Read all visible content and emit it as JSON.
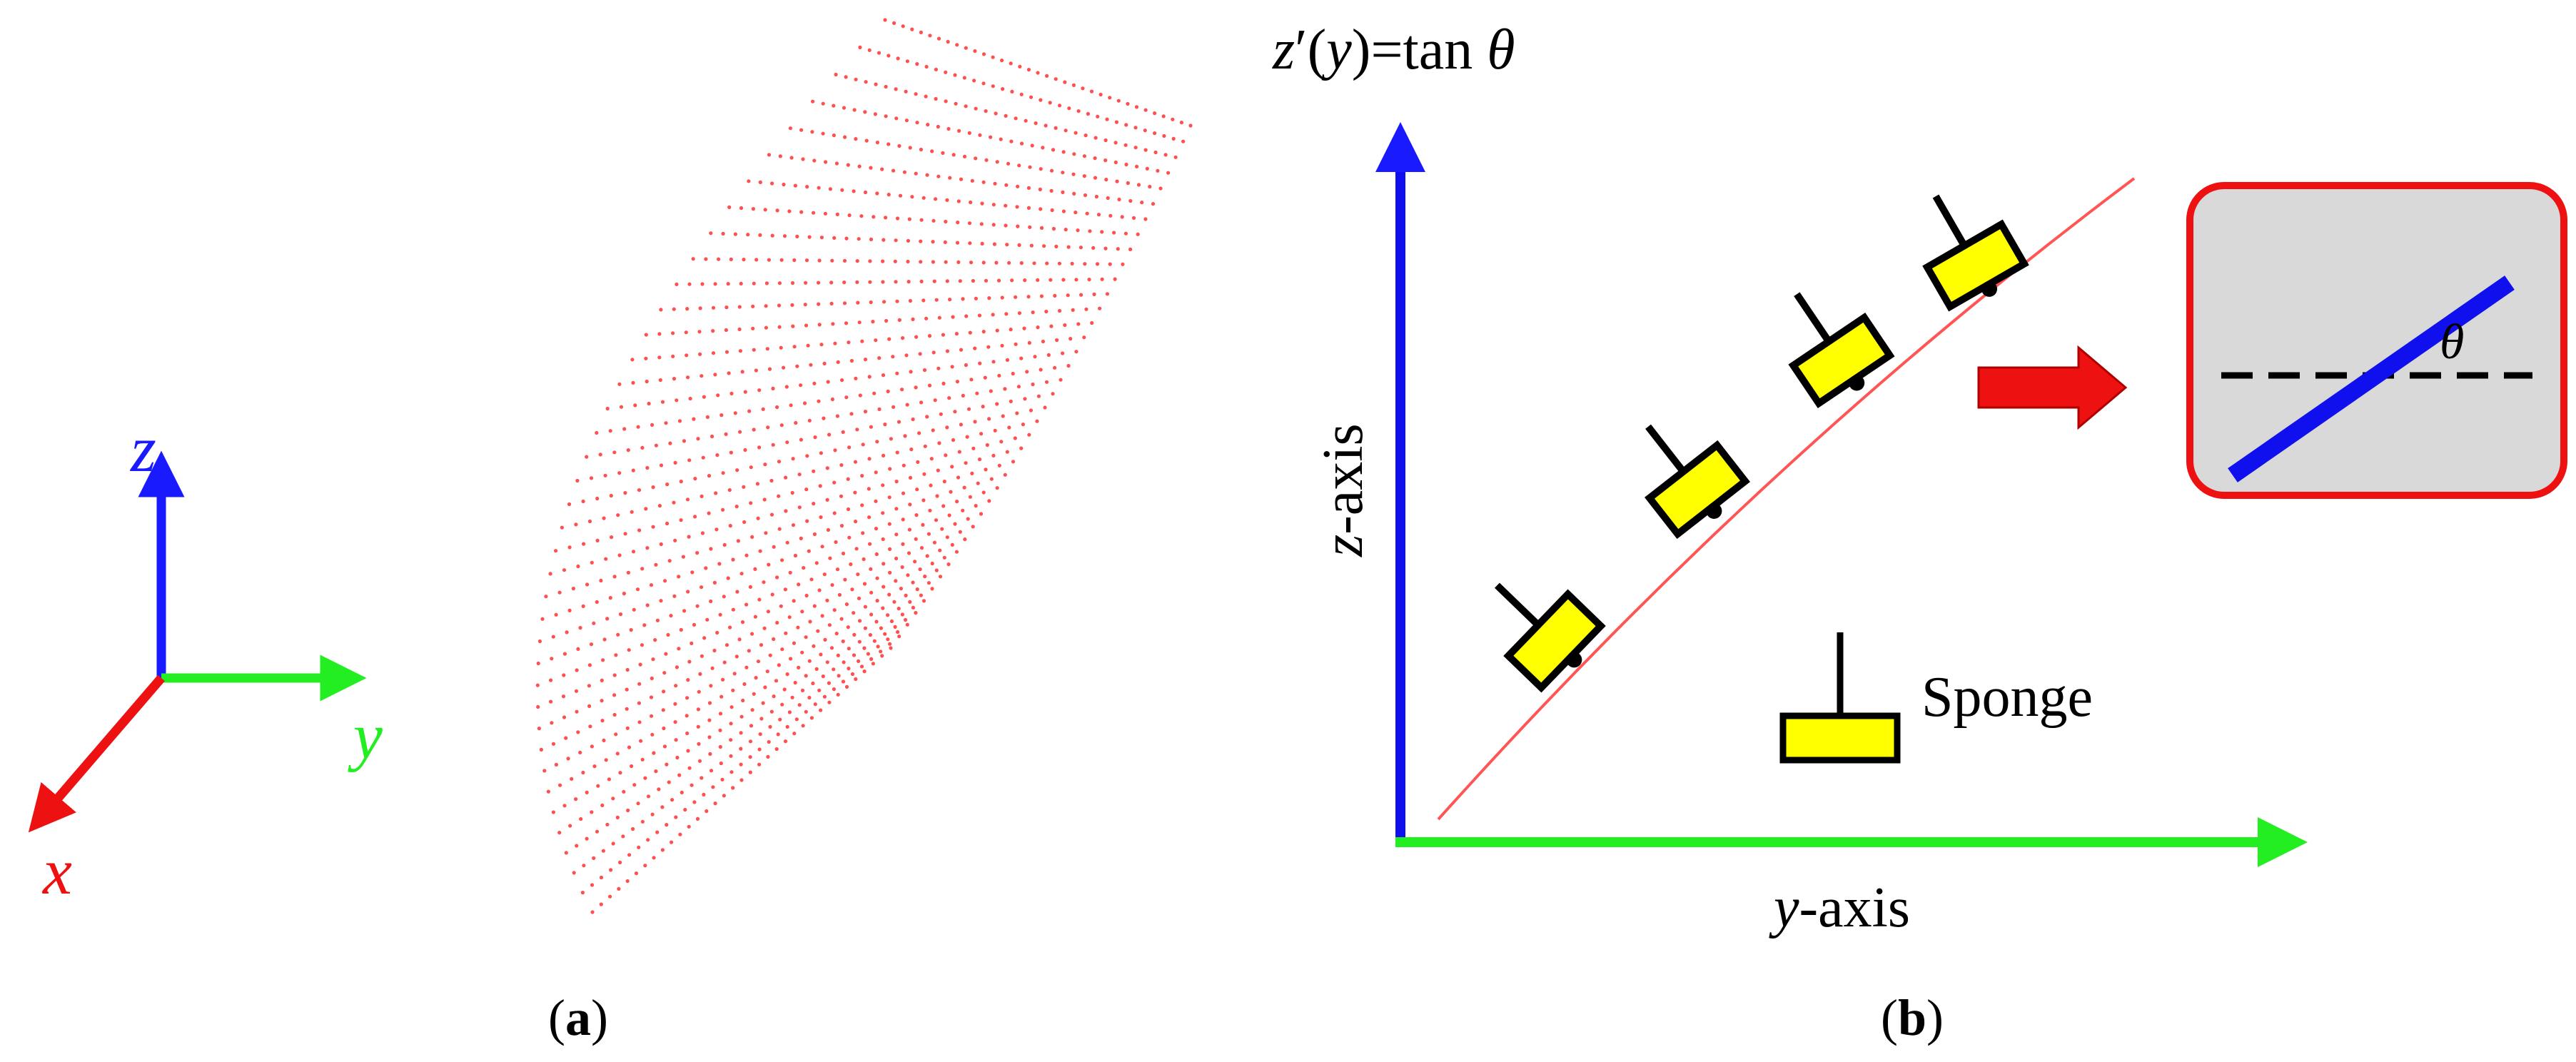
{
  "panel_a": {
    "caption_open": "(",
    "caption_letter": "a",
    "caption_close": ")",
    "axes": {
      "z": "z",
      "y": "y",
      "x": "x"
    },
    "colors": {
      "z": "#1a1aff",
      "y": "#22ee22",
      "x": "#ee1111",
      "points": "#ff5050"
    }
  },
  "panel_b": {
    "caption_open": "(",
    "caption_letter": "b",
    "caption_close": ")",
    "formula": {
      "z": "z",
      "prime": "′",
      "open": "(",
      "y": "y",
      "close_eq": ")=tan ",
      "theta": "θ"
    },
    "z_axis": {
      "var": "z",
      "suffix": "-axis"
    },
    "y_axis": {
      "var": "y",
      "suffix": "-axis"
    },
    "legend_label": "Sponge",
    "inset_angle": "θ",
    "colors": {
      "z_axis": "#1010ee",
      "y_axis": "#22ee22",
      "curve": "#ff5555",
      "sponge": "#ffff00",
      "arrow": "#ee1111",
      "inset_bg": "#d9d9d9",
      "inset_border": "#ee1111",
      "inset_line": "#1010ee"
    }
  }
}
